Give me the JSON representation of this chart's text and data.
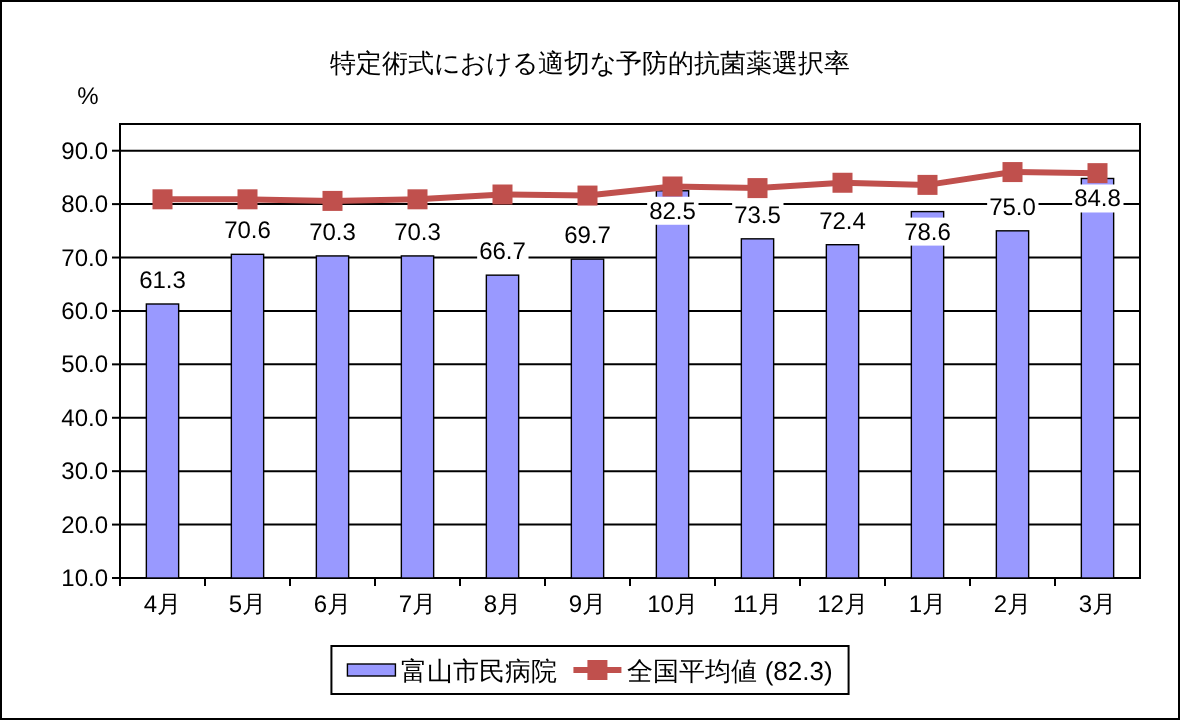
{
  "chart_data": {
    "type": "bar",
    "title": "特定術式における適切な予防的抗菌薬選択率",
    "ylabel": "%",
    "categories": [
      "4月",
      "5月",
      "6月",
      "7月",
      "8月",
      "9月",
      "10月",
      "11月",
      "12月",
      "1月",
      "2月",
      "3月"
    ],
    "series": [
      {
        "name": "富山市民病院",
        "color": "#9999ff",
        "values": [
          61.3,
          70.6,
          70.3,
          70.3,
          66.7,
          69.7,
          82.5,
          73.5,
          72.4,
          78.6,
          75.0,
          84.8
        ],
        "value_labels": [
          "61.3",
          "70.6",
          "70.3",
          "70.3",
          "66.7",
          "69.7",
          "82.5",
          "73.5",
          "72.4",
          "78.6",
          "75.0",
          "84.8"
        ]
      },
      {
        "name": "全国平均値 (82.3)",
        "type": "line",
        "color": "#c0504d",
        "marker": "square",
        "values": [
          80.9,
          80.9,
          80.6,
          80.9,
          81.8,
          81.6,
          83.3,
          83.0,
          84.0,
          83.6,
          86.0,
          85.8
        ]
      }
    ],
    "ylim": [
      10,
      95
    ],
    "yticks": [
      {
        "value": 10,
        "label": "10.0"
      },
      {
        "value": 20,
        "label": "20.0"
      },
      {
        "value": 30,
        "label": "30.0"
      },
      {
        "value": 40,
        "label": "40.0"
      },
      {
        "value": 50,
        "label": "50.0"
      },
      {
        "value": 60,
        "label": "60.0"
      },
      {
        "value": 70,
        "label": "70.0"
      },
      {
        "value": 80,
        "label": "80.0"
      },
      {
        "value": 90,
        "label": "90.0"
      }
    ],
    "grid": "y",
    "legend": "bottom"
  }
}
